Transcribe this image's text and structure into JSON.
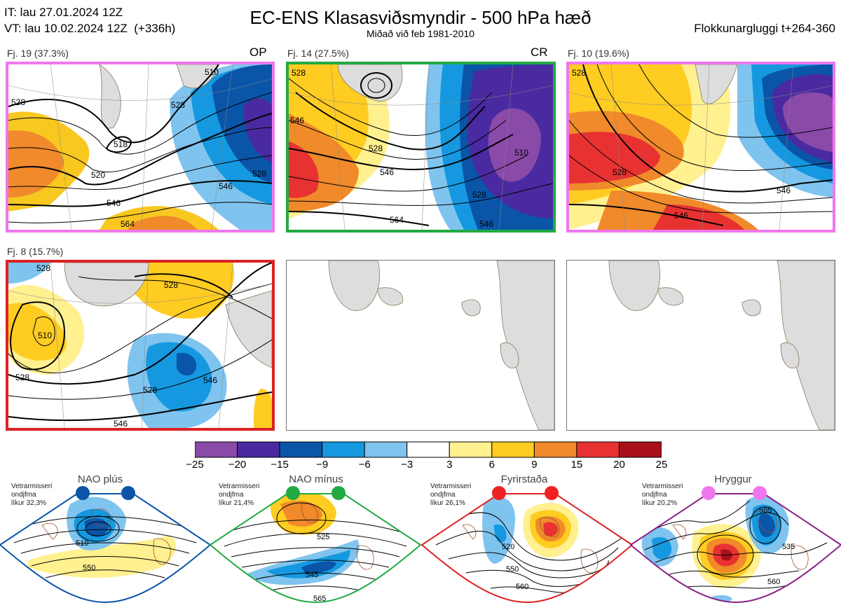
{
  "header": {
    "it_line": "IT: lau 27.01.2024 12Z",
    "vt_line": "VT: lau 10.02.2024 12Z  (+336h)",
    "title": "EC-ENS Klasasviðsmyndir - 500 hPa hæð",
    "subtitle": "Miðað við feb 1981-2010",
    "window": "Flokkunargluggi t+264-360"
  },
  "panels": [
    {
      "label": "Fj. 19 (37.3%)",
      "tag": "OP",
      "border": "#ee77ee",
      "contours": [
        "510",
        "528",
        "518",
        "520",
        "546",
        "528",
        "528",
        "546",
        "564"
      ]
    },
    {
      "label": "Fj. 14 (27.5%)",
      "tag": "CR",
      "border": "#22aa44",
      "contours": [
        "528",
        "546",
        "528",
        "510",
        "528",
        "546",
        "564",
        "546"
      ]
    },
    {
      "label": "Fj. 10 (19.6%)",
      "tag": "",
      "border": "#ee77ee",
      "contours": [
        "528",
        "528",
        "546",
        "546"
      ]
    },
    {
      "label": "Fj. 8 (15.7%)",
      "tag": "",
      "border": "#dd2222",
      "contours": [
        "528",
        "510",
        "528",
        "528",
        "546",
        "528",
        "546"
      ]
    }
  ],
  "colorbar": {
    "colors": [
      "#8a4aa8",
      "#4a2aa0",
      "#0a55a8",
      "#1598e0",
      "#7fc4ee",
      "#ffffff",
      "#fff090",
      "#ffcc22",
      "#f08a2a",
      "#e83232",
      "#a8101a"
    ],
    "ticks": [
      "−25",
      "−20",
      "−15",
      "−9",
      "−6",
      "−3",
      "3",
      "6",
      "9",
      "15",
      "20",
      "25"
    ]
  },
  "regimes": [
    {
      "title": "NAO plús",
      "note_lines": [
        "Vetrarmisseri",
        "ondjfma",
        "líkur 32,3%"
      ],
      "color": "#0a55a8",
      "dot": "#0a55a8",
      "contours": [
        "510",
        "550"
      ]
    },
    {
      "title": "NAO mínus",
      "note_lines": [
        "Vetrarmisseri",
        "ondjfma",
        "líkur 21,4%"
      ],
      "color": "#22aa44",
      "dot": "#22aa44",
      "contours": [
        "525",
        "545",
        "565"
      ]
    },
    {
      "title": "Fyrirstaða",
      "note_lines": [
        "Vetrarmisseri",
        "ondjfma",
        "líkur 26,1%"
      ],
      "color": "#dd2222",
      "dot": "#ee2222",
      "contours": [
        "520",
        "550",
        "560"
      ]
    },
    {
      "title": "Hryggur",
      "note_lines": [
        "Vetrarmisseri",
        "ondjfma",
        "líkur 20,2%"
      ],
      "color": "#882288",
      "dot": "#ee77ee",
      "contours": [
        "505",
        "535",
        "560"
      ]
    }
  ]
}
